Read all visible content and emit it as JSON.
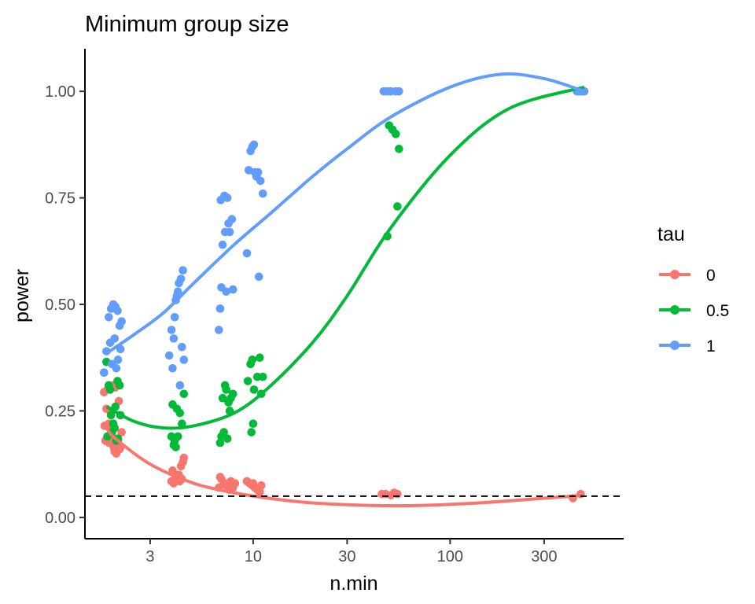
{
  "chart_data": {
    "type": "scatter",
    "title": "Minimum group size",
    "xlabel": "n.min",
    "ylabel": "power",
    "x_scale": "log10",
    "xlim": [
      1.4,
      760
    ],
    "ylim": [
      -0.05,
      1.1
    ],
    "x_ticks": [
      3,
      10,
      30,
      100,
      300
    ],
    "x_tick_labels": [
      "3",
      "10",
      "30",
      "100",
      "300"
    ],
    "y_ticks": [
      0,
      0.25,
      0.5,
      0.75,
      1
    ],
    "y_tick_labels": [
      "0.00",
      "0.25",
      "0.50",
      "0.75",
      "1.00"
    ],
    "reference_line": {
      "y": 0.05,
      "style": "dashed"
    },
    "grid": false,
    "legend": {
      "title": "tau",
      "position": "right"
    },
    "series": [
      {
        "name": "0",
        "color": "#F8766D",
        "points": [
          [
            1.75,
            0.294
          ],
          [
            1.8,
            0.255
          ],
          [
            1.85,
            0.22
          ],
          [
            1.78,
            0.18
          ],
          [
            1.9,
            0.2
          ],
          [
            1.82,
            0.3
          ],
          [
            1.95,
            0.31
          ],
          [
            2.0,
            0.305
          ],
          [
            1.88,
            0.25
          ],
          [
            1.92,
            0.19
          ],
          [
            2.05,
            0.17
          ],
          [
            2.1,
            0.16
          ],
          [
            1.98,
            0.155
          ],
          [
            2.02,
            0.15
          ],
          [
            2.12,
            0.165
          ],
          [
            2.08,
            0.273
          ],
          [
            1.86,
            0.175
          ],
          [
            1.93,
            0.21
          ],
          [
            2.15,
            0.2
          ],
          [
            1.76,
            0.215
          ],
          [
            2.06,
            0.18
          ],
          [
            1.96,
            0.165
          ],
          [
            3.85,
            0.085
          ],
          [
            3.9,
            0.11
          ],
          [
            4.0,
            0.09
          ],
          [
            4.1,
            0.095
          ],
          [
            4.2,
            0.1
          ],
          [
            4.3,
            0.12
          ],
          [
            4.4,
            0.13
          ],
          [
            4.45,
            0.14
          ],
          [
            3.95,
            0.08
          ],
          [
            4.05,
            0.1
          ],
          [
            4.25,
            0.085
          ],
          [
            4.35,
            0.09
          ],
          [
            6.7,
            0.07
          ],
          [
            6.9,
            0.09
          ],
          [
            7.1,
            0.08
          ],
          [
            7.3,
            0.075
          ],
          [
            7.5,
            0.065
          ],
          [
            7.7,
            0.085
          ],
          [
            7.9,
            0.07
          ],
          [
            8.1,
            0.08
          ],
          [
            6.8,
            0.095
          ],
          [
            7.4,
            0.08
          ],
          [
            9.3,
            0.085
          ],
          [
            9.6,
            0.08
          ],
          [
            9.9,
            0.075
          ],
          [
            10.2,
            0.07
          ],
          [
            10.5,
            0.065
          ],
          [
            10.8,
            0.06
          ],
          [
            11.0,
            0.075
          ],
          [
            10.0,
            0.08
          ],
          [
            45,
            0.055
          ],
          [
            47,
            0.055
          ],
          [
            50,
            0.052
          ],
          [
            52,
            0.058
          ],
          [
            54,
            0.055
          ],
          [
            420,
            0.045
          ],
          [
            460,
            0.055
          ]
        ],
        "trend": [
          [
            1.8,
            0.21
          ],
          [
            2,
            0.185
          ],
          [
            3,
            0.125
          ],
          [
            5,
            0.08
          ],
          [
            8,
            0.058
          ],
          [
            12,
            0.045
          ],
          [
            20,
            0.034
          ],
          [
            40,
            0.028
          ],
          [
            70,
            0.028
          ],
          [
            150,
            0.035
          ],
          [
            300,
            0.045
          ],
          [
            480,
            0.052
          ]
        ]
      },
      {
        "name": "0.5",
        "color": "#00BA38",
        "points": [
          [
            1.75,
            0.34
          ],
          [
            1.8,
            0.365
          ],
          [
            1.85,
            0.31
          ],
          [
            1.9,
            0.24
          ],
          [
            1.95,
            0.22
          ],
          [
            2.0,
            0.26
          ],
          [
            2.05,
            0.32
          ],
          [
            2.1,
            0.31
          ],
          [
            1.88,
            0.3
          ],
          [
            1.92,
            0.2
          ],
          [
            1.98,
            0.21
          ],
          [
            2.02,
            0.18
          ],
          [
            2.12,
            0.24
          ],
          [
            1.82,
            0.19
          ],
          [
            2.06,
            0.185
          ],
          [
            3.85,
            0.19
          ],
          [
            3.95,
            0.17
          ],
          [
            4.0,
            0.18
          ],
          [
            4.05,
            0.165
          ],
          [
            4.15,
            0.19
          ],
          [
            4.25,
            0.245
          ],
          [
            4.35,
            0.22
          ],
          [
            4.45,
            0.29
          ],
          [
            3.9,
            0.265
          ],
          [
            4.1,
            0.255
          ],
          [
            6.8,
            0.175
          ],
          [
            6.9,
            0.19
          ],
          [
            7.0,
            0.28
          ],
          [
            7.2,
            0.31
          ],
          [
            7.3,
            0.3
          ],
          [
            7.5,
            0.27
          ],
          [
            7.7,
            0.28
          ],
          [
            7.9,
            0.29
          ],
          [
            7.6,
            0.25
          ],
          [
            7.1,
            0.2
          ],
          [
            7.4,
            0.185
          ],
          [
            9.4,
            0.32
          ],
          [
            9.7,
            0.36
          ],
          [
            9.9,
            0.37
          ],
          [
            10.1,
            0.3
          ],
          [
            10.5,
            0.33
          ],
          [
            10.8,
            0.375
          ],
          [
            11.0,
            0.29
          ],
          [
            11.2,
            0.33
          ],
          [
            9.8,
            0.2
          ],
          [
            10.0,
            0.22
          ],
          [
            49,
            0.92
          ],
          [
            51,
            0.91
          ],
          [
            53,
            0.9
          ],
          [
            55,
            0.865
          ],
          [
            54,
            0.73
          ],
          [
            48,
            0.66
          ],
          [
            450,
            1.0
          ],
          [
            470,
            1.0
          ]
        ],
        "trend": [
          [
            1.8,
            0.26
          ],
          [
            2.5,
            0.225
          ],
          [
            3.5,
            0.21
          ],
          [
            5,
            0.215
          ],
          [
            8,
            0.245
          ],
          [
            12,
            0.305
          ],
          [
            20,
            0.41
          ],
          [
            30,
            0.52
          ],
          [
            50,
            0.68
          ],
          [
            100,
            0.85
          ],
          [
            200,
            0.96
          ],
          [
            480,
            1.01
          ]
        ]
      },
      {
        "name": "1",
        "color": "#619CFF",
        "points": [
          [
            1.75,
            0.34
          ],
          [
            1.8,
            0.39
          ],
          [
            1.85,
            0.47
          ],
          [
            1.9,
            0.49
          ],
          [
            1.95,
            0.5
          ],
          [
            2.0,
            0.495
          ],
          [
            2.05,
            0.485
          ],
          [
            2.1,
            0.45
          ],
          [
            1.88,
            0.41
          ],
          [
            1.92,
            0.36
          ],
          [
            2.02,
            0.35
          ],
          [
            2.12,
            0.395
          ],
          [
            2.06,
            0.37
          ],
          [
            2.15,
            0.46
          ],
          [
            1.98,
            0.42
          ],
          [
            3.75,
            0.38
          ],
          [
            3.85,
            0.44
          ],
          [
            3.9,
            0.35
          ],
          [
            3.95,
            0.42
          ],
          [
            4.0,
            0.47
          ],
          [
            4.05,
            0.51
          ],
          [
            4.1,
            0.52
          ],
          [
            4.2,
            0.55
          ],
          [
            4.3,
            0.56
          ],
          [
            4.4,
            0.58
          ],
          [
            4.35,
            0.4
          ],
          [
            4.45,
            0.37
          ],
          [
            4.25,
            0.31
          ],
          [
            4.15,
            0.53
          ],
          [
            6.7,
            0.44
          ],
          [
            6.8,
            0.49
          ],
          [
            6.9,
            0.54
          ],
          [
            7.0,
            0.64
          ],
          [
            7.2,
            0.67
          ],
          [
            7.4,
            0.75
          ],
          [
            7.5,
            0.69
          ],
          [
            7.8,
            0.7
          ],
          [
            7.6,
            0.67
          ],
          [
            7.3,
            0.53
          ],
          [
            7.9,
            0.535
          ],
          [
            6.85,
            0.745
          ],
          [
            7.15,
            0.755
          ],
          [
            9.3,
            0.62
          ],
          [
            9.5,
            0.815
          ],
          [
            9.7,
            0.86
          ],
          [
            9.9,
            0.87
          ],
          [
            10.1,
            0.875
          ],
          [
            10.4,
            0.8
          ],
          [
            10.6,
            0.81
          ],
          [
            10.9,
            0.79
          ],
          [
            11.2,
            0.76
          ],
          [
            10.7,
            0.565
          ],
          [
            10.2,
            0.81
          ],
          [
            46,
            1.0
          ],
          [
            48,
            1.0
          ],
          [
            50,
            1.0
          ],
          [
            53,
            1.0
          ],
          [
            55,
            1.0
          ],
          [
            440,
            1.0
          ],
          [
            460,
            1.0
          ],
          [
            480,
            1.0
          ]
        ],
        "trend": [
          [
            1.8,
            0.385
          ],
          [
            2.5,
            0.43
          ],
          [
            3.5,
            0.48
          ],
          [
            5,
            0.55
          ],
          [
            8,
            0.64
          ],
          [
            12,
            0.71
          ],
          [
            20,
            0.8
          ],
          [
            30,
            0.865
          ],
          [
            50,
            0.94
          ],
          [
            100,
            1.01
          ],
          [
            180,
            1.04
          ],
          [
            300,
            1.03
          ],
          [
            480,
            1.0
          ]
        ]
      }
    ]
  }
}
